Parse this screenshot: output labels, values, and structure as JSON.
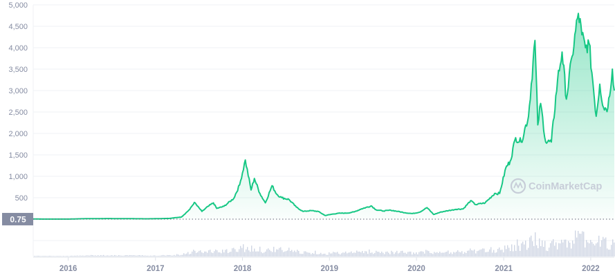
{
  "chart_data": {
    "type": "area",
    "x_axis_type": "date",
    "y_ticks": [
      500,
      1000,
      1500,
      2000,
      2500,
      3000,
      3500,
      4000,
      4500,
      5000
    ],
    "y_tick_labels": [
      "500",
      "1,000",
      "1,500",
      "2,000",
      "2,500",
      "3,000",
      "3,500",
      "4,000",
      "4,500",
      "5,000"
    ],
    "ylim": [
      0,
      5000
    ],
    "x_ticks": [
      "2016-01-01",
      "2017-01-01",
      "2018-01-01",
      "2019-01-01",
      "2020-01-01",
      "2021-01-01",
      "2022-01-01"
    ],
    "x_tick_labels": [
      "2016",
      "2017",
      "2018",
      "2019",
      "2020",
      "2021",
      "2022"
    ],
    "xlim": [
      "2015-08-07",
      "2022-04-10"
    ],
    "grid": true,
    "price_marker": {
      "label": "0.75",
      "value": 0.75
    },
    "watermark": "CoinMarketCap",
    "colors": {
      "line": "#16c784",
      "area_top": "#16c784",
      "volume": "#cfd6e4",
      "marker_bg": "#858ca2",
      "tick_text": "#858ca2",
      "grid": "#eff2f5"
    },
    "series": [
      {
        "values": [
          [
            "2015-08-07",
            2.8
          ],
          [
            "2016-01-01",
            0.9
          ],
          [
            "2016-03-15",
            12
          ],
          [
            "2016-06-15",
            14
          ],
          [
            "2016-09-01",
            12
          ],
          [
            "2016-12-01",
            8
          ],
          [
            "2017-03-01",
            18
          ],
          [
            "2017-04-20",
            50
          ],
          [
            "2017-05-25",
            230
          ],
          [
            "2017-06-13",
            390
          ],
          [
            "2017-07-15",
            180
          ],
          [
            "2017-08-10",
            300
          ],
          [
            "2017-09-01",
            380
          ],
          [
            "2017-09-15",
            250
          ],
          [
            "2017-10-15",
            300
          ],
          [
            "2017-11-25",
            480
          ],
          [
            "2017-12-20",
            800
          ],
          [
            "2018-01-13",
            1380
          ],
          [
            "2018-02-06",
            680
          ],
          [
            "2018-02-20",
            950
          ],
          [
            "2018-03-15",
            600
          ],
          [
            "2018-04-07",
            380
          ],
          [
            "2018-05-05",
            780
          ],
          [
            "2018-05-25",
            580
          ],
          [
            "2018-06-15",
            500
          ],
          [
            "2018-07-15",
            460
          ],
          [
            "2018-08-15",
            280
          ],
          [
            "2018-09-12",
            180
          ],
          [
            "2018-10-15",
            200
          ],
          [
            "2018-11-15",
            180
          ],
          [
            "2018-12-14",
            85
          ],
          [
            "2019-01-15",
            120
          ],
          [
            "2019-02-15",
            140
          ],
          [
            "2019-03-15",
            140
          ],
          [
            "2019-04-15",
            170
          ],
          [
            "2019-05-15",
            240
          ],
          [
            "2019-06-26",
            310
          ],
          [
            "2019-07-15",
            220
          ],
          [
            "2019-08-15",
            190
          ],
          [
            "2019-09-15",
            210
          ],
          [
            "2019-10-15",
            180
          ],
          [
            "2019-11-15",
            150
          ],
          [
            "2019-12-15",
            130
          ],
          [
            "2020-01-15",
            165
          ],
          [
            "2020-02-14",
            270
          ],
          [
            "2020-03-13",
            110
          ],
          [
            "2020-04-15",
            170
          ],
          [
            "2020-05-15",
            200
          ],
          [
            "2020-06-15",
            230
          ],
          [
            "2020-07-15",
            240
          ],
          [
            "2020-08-15",
            430
          ],
          [
            "2020-09-05",
            340
          ],
          [
            "2020-10-15",
            380
          ],
          [
            "2020-11-24",
            600
          ],
          [
            "2020-12-15",
            600
          ],
          [
            "2021-01-10",
            1200
          ],
          [
            "2021-01-28",
            1350
          ],
          [
            "2021-02-20",
            1900
          ],
          [
            "2021-03-15",
            1800
          ],
          [
            "2021-04-15",
            2400
          ],
          [
            "2021-05-12",
            4170
          ],
          [
            "2021-05-24",
            2200
          ],
          [
            "2021-06-05",
            2700
          ],
          [
            "2021-06-26",
            1800
          ],
          [
            "2021-07-20",
            1800
          ],
          [
            "2021-08-15",
            3250
          ],
          [
            "2021-09-03",
            3900
          ],
          [
            "2021-09-21",
            2800
          ],
          [
            "2021-10-15",
            3800
          ],
          [
            "2021-11-10",
            4800
          ],
          [
            "2021-11-25",
            4300
          ],
          [
            "2021-12-10",
            4000
          ],
          [
            "2021-12-25",
            4100
          ],
          [
            "2022-01-10",
            3200
          ],
          [
            "2022-01-24",
            2400
          ],
          [
            "2022-02-08",
            3150
          ],
          [
            "2022-02-24",
            2600
          ],
          [
            "2022-03-14",
            2600
          ],
          [
            "2022-04-02",
            3500
          ],
          [
            "2022-04-10",
            3000
          ]
        ]
      }
    ]
  }
}
